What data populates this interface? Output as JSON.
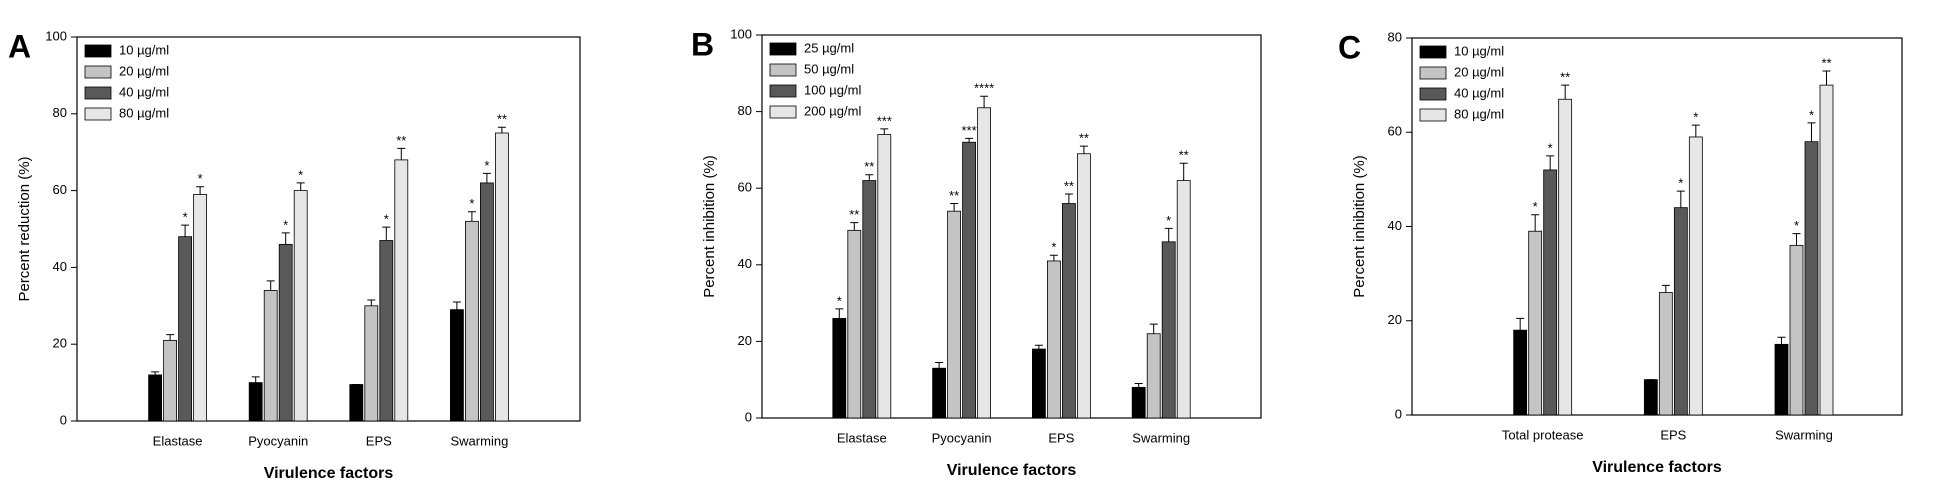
{
  "chart_data": [
    {
      "type": "bar",
      "panel_label": "A",
      "ylabel": "Percent reduction (%)",
      "xlabel": "Virulence factors",
      "categories": [
        "Elastase",
        "Pyocyanin",
        "EPS",
        "Swarming"
      ],
      "ylim": [
        0,
        100
      ],
      "yticks": [
        0,
        20,
        40,
        60,
        80,
        100
      ],
      "legend": "upper left",
      "series": [
        {
          "name": "10 µg/ml",
          "color": "#000000",
          "values": [
            12,
            10,
            9.5,
            29
          ],
          "errors": [
            0.8,
            1.5,
            0,
            2
          ],
          "significance": [
            null,
            null,
            null,
            null
          ]
        },
        {
          "name": "20 µg/ml",
          "color": "#c4c4c4",
          "values": [
            21,
            34,
            30,
            52
          ],
          "errors": [
            1.5,
            2.5,
            1.5,
            2.5
          ],
          "significance": [
            null,
            null,
            null,
            "*"
          ]
        },
        {
          "name": "40 µg/ml",
          "color": "#595959",
          "values": [
            48,
            46,
            47,
            62
          ],
          "errors": [
            3,
            3,
            3.5,
            2.5
          ],
          "significance": [
            "*",
            "*",
            "*",
            "*"
          ]
        },
        {
          "name": "80 µg/ml",
          "color": "#e6e6e6",
          "values": [
            59,
            60,
            68,
            75
          ],
          "errors": [
            2,
            2,
            3,
            1.5
          ],
          "significance": [
            "*",
            "*",
            "**",
            "**"
          ]
        }
      ]
    },
    {
      "type": "bar",
      "panel_label": "B",
      "ylabel": "Percent inhibition (%)",
      "xlabel": "Virulence factors",
      "categories": [
        "Elastase",
        "Pyocyanin",
        "EPS",
        "Swarming"
      ],
      "ylim": [
        0,
        100
      ],
      "yticks": [
        0,
        20,
        40,
        60,
        80,
        100
      ],
      "legend": "upper left",
      "series": [
        {
          "name": "25 µg/ml",
          "color": "#000000",
          "values": [
            26,
            13,
            18,
            8
          ],
          "errors": [
            2.5,
            1.5,
            1,
            1
          ],
          "significance": [
            "*",
            null,
            null,
            null
          ]
        },
        {
          "name": "50 µg/ml",
          "color": "#c4c4c4",
          "values": [
            49,
            54,
            41,
            22
          ],
          "errors": [
            2,
            2,
            1.5,
            2.5
          ],
          "significance": [
            "**",
            "**",
            "*",
            null
          ]
        },
        {
          "name": "100 µg/ml",
          "color": "#595959",
          "values": [
            62,
            72,
            56,
            46
          ],
          "errors": [
            1.5,
            1,
            2.5,
            3.5
          ],
          "significance": [
            "**",
            "***",
            "**",
            "*"
          ]
        },
        {
          "name": "200 µg/ml",
          "color": "#e6e6e6",
          "values": [
            74,
            81,
            69,
            62
          ],
          "errors": [
            1.5,
            3,
            2,
            4.5
          ],
          "significance": [
            "***",
            "****",
            "**",
            "**"
          ]
        }
      ]
    },
    {
      "type": "bar",
      "panel_label": "C",
      "ylabel": "Percent inhibition (%)",
      "xlabel": "Virulence factors",
      "categories": [
        "Total protease",
        "EPS",
        "Swarming"
      ],
      "ylim": [
        0,
        80
      ],
      "yticks": [
        0,
        20,
        40,
        60,
        80
      ],
      "legend": "upper left",
      "series": [
        {
          "name": "10 µg/ml",
          "color": "#000000",
          "values": [
            18,
            7.5,
            15
          ],
          "errors": [
            2.5,
            0,
            1.5
          ],
          "significance": [
            null,
            null,
            null
          ]
        },
        {
          "name": "20 µg/ml",
          "color": "#c4c4c4",
          "values": [
            39,
            26,
            36
          ],
          "errors": [
            3.5,
            1.5,
            2.5
          ],
          "significance": [
            "*",
            null,
            "*"
          ]
        },
        {
          "name": "40 µg/ml",
          "color": "#595959",
          "values": [
            52,
            44,
            58
          ],
          "errors": [
            3,
            3.5,
            4
          ],
          "significance": [
            "*",
            "*",
            "*"
          ]
        },
        {
          "name": "80 µg/ml",
          "color": "#e6e6e6",
          "values": [
            67,
            59,
            70
          ],
          "errors": [
            3,
            2.5,
            3
          ],
          "significance": [
            "**",
            "*",
            "**"
          ]
        }
      ]
    }
  ]
}
